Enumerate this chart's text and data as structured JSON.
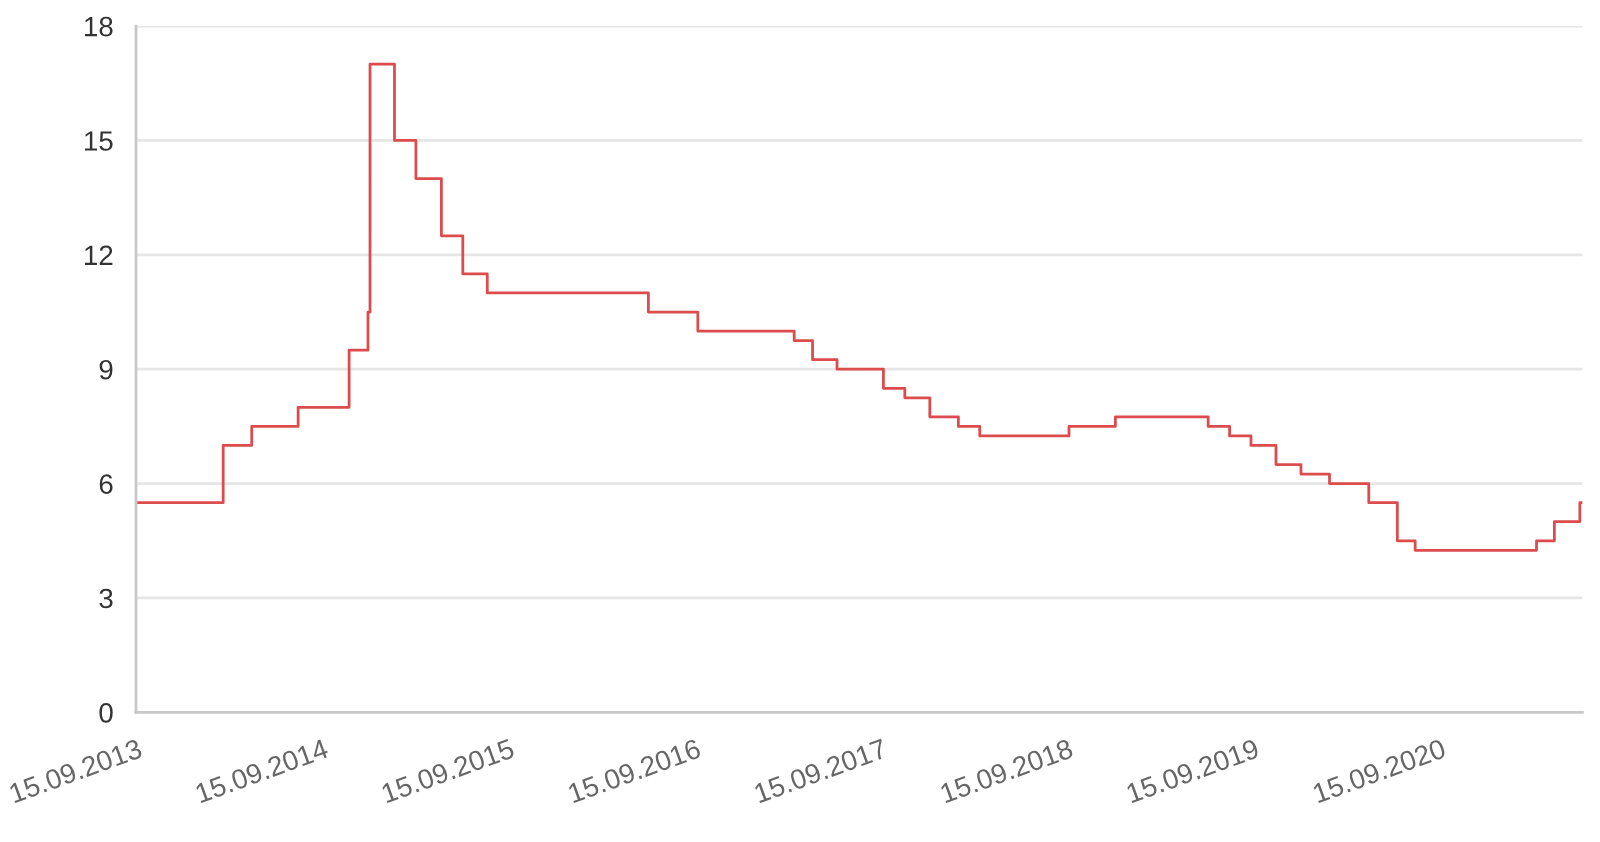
{
  "chart_data": {
    "type": "step",
    "x": [
      "2013-09-13",
      "2014-03-03",
      "2014-04-28",
      "2014-07-28",
      "2014-11-05",
      "2014-12-12",
      "2014-12-16",
      "2015-02-02",
      "2015-03-16",
      "2015-05-05",
      "2015-06-16",
      "2015-08-03",
      "2016-06-14",
      "2016-09-19",
      "2017-03-27",
      "2017-05-02",
      "2017-06-19",
      "2017-09-18",
      "2017-10-30",
      "2017-12-18",
      "2018-02-12",
      "2018-03-26",
      "2018-09-17",
      "2018-12-17",
      "2019-06-17",
      "2019-07-29",
      "2019-09-09",
      "2019-10-28",
      "2019-12-16",
      "2020-02-10",
      "2020-04-27",
      "2020-06-22",
      "2020-07-27",
      "2021-03-22",
      "2021-04-26",
      "2021-06-15",
      "2021-06-20"
    ],
    "series": [
      {
        "color": "#dc4c4c",
        "values": [
          5.5,
          7,
          7.5,
          8,
          9.5,
          10.5,
          17,
          15,
          14,
          12.5,
          11.5,
          11,
          10.5,
          10,
          9.75,
          9.25,
          9,
          8.5,
          8.25,
          7.75,
          7.5,
          7.25,
          7.5,
          7.75,
          7.5,
          7.25,
          7,
          6.5,
          6.25,
          6,
          5.5,
          4.5,
          4.25,
          4.5,
          5,
          5.5,
          5.5
        ]
      }
    ],
    "xlim": [
      "2013-09-13",
      "2021-06-20"
    ],
    "xticks": [
      {
        "value": "2013-09-15",
        "label": "15.09.2013"
      },
      {
        "value": "2014-09-15",
        "label": "15.09.2014"
      },
      {
        "value": "2015-09-15",
        "label": "15.09.2015"
      },
      {
        "value": "2016-09-15",
        "label": "15.09.2016"
      },
      {
        "value": "2017-09-15",
        "label": "15.09.2017"
      },
      {
        "value": "2018-09-15",
        "label": "15.09.2018"
      },
      {
        "value": "2019-09-15",
        "label": "15.09.2019"
      },
      {
        "value": "2020-09-15",
        "label": "15.09.2020"
      }
    ],
    "ylim": [
      0,
      18
    ],
    "yticks": [
      0,
      3,
      6,
      9,
      12,
      15,
      18
    ],
    "grid": "y",
    "line_style": "solid"
  }
}
